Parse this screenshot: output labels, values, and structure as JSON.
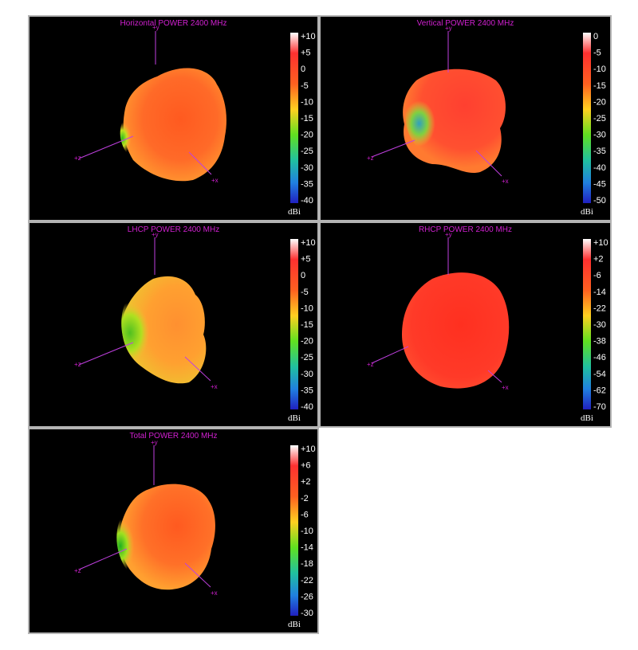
{
  "charts": [
    {
      "title": "Horizontal POWER 2400  MHz",
      "unit": "dBi",
      "ticks": [
        "+10",
        "+5",
        "0",
        "-5",
        "-10",
        "-15",
        "-20",
        "-25",
        "-30",
        "-35",
        "-40"
      ],
      "axes": {
        "y": "+y",
        "x": "+x",
        "z": "+z"
      }
    },
    {
      "title": "Vertical POWER 2400  MHz",
      "unit": "dBi",
      "ticks": [
        "0",
        "-5",
        "-10",
        "-15",
        "-20",
        "-25",
        "-30",
        "-35",
        "-40",
        "-45",
        "-50"
      ],
      "axes": {
        "y": "+y",
        "x": "+x",
        "z": "+z"
      }
    },
    {
      "title": "LHCP POWER 2400  MHz",
      "unit": "dBi",
      "ticks": [
        "+10",
        "+5",
        "0",
        "-5",
        "-10",
        "-15",
        "-20",
        "-25",
        "-30",
        "-35",
        "-40"
      ],
      "axes": {
        "y": "+y",
        "x": "+x",
        "z": "+z"
      }
    },
    {
      "title": "RHCP POWER 2400  MHz",
      "unit": "dBi",
      "ticks": [
        "+10",
        "+2",
        "-6",
        "-14",
        "-22",
        "-30",
        "-38",
        "-46",
        "-54",
        "-62",
        "-70"
      ],
      "axes": {
        "y": "+y",
        "x": "+x",
        "z": "+z"
      }
    },
    {
      "title": "Total POWER 2400  MHz",
      "unit": "dBi",
      "ticks": [
        "+10",
        "+6",
        "+2",
        "-2",
        "-6",
        "-10",
        "-14",
        "-18",
        "-22",
        "-26",
        "-30"
      ],
      "axes": {
        "y": "+y",
        "x": "+x",
        "z": "+z"
      }
    }
  ],
  "chart_data": [
    {
      "type": "other",
      "title": "Horizontal POWER 2400  MHz",
      "colorbar_range": [
        -40,
        10
      ],
      "colorbar_unit": "dBi"
    },
    {
      "type": "other",
      "title": "Vertical POWER 2400  MHz",
      "colorbar_range": [
        -50,
        0
      ],
      "colorbar_unit": "dBi"
    },
    {
      "type": "other",
      "title": "LHCP POWER 2400  MHz",
      "colorbar_range": [
        -40,
        10
      ],
      "colorbar_unit": "dBi"
    },
    {
      "type": "other",
      "title": "RHCP POWER 2400  MHz",
      "colorbar_range": [
        -70,
        10
      ],
      "colorbar_unit": "dBi"
    },
    {
      "type": "other",
      "title": "Total POWER 2400  MHz",
      "colorbar_range": [
        -30,
        10
      ],
      "colorbar_unit": "dBi"
    }
  ],
  "colors": {
    "title": "#d020d0",
    "axis": "#c040e0",
    "background": "#000000"
  }
}
